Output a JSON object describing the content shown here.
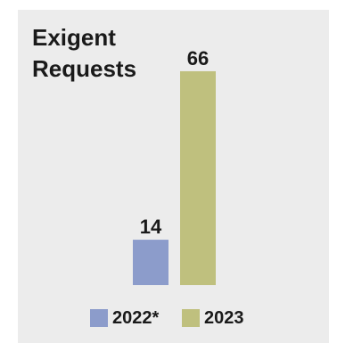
{
  "chart_data": {
    "type": "bar",
    "title_lines": [
      "Exigent",
      "Requests"
    ],
    "categories": [
      "2022*",
      "2023"
    ],
    "values": [
      14,
      66
    ],
    "data_labels": [
      "14",
      "66"
    ],
    "colors": [
      "#8c9ccb",
      "#bfc07e"
    ],
    "ylim": [
      0,
      70
    ],
    "grid": false,
    "legend_position": "bottom",
    "legend": [
      {
        "label": "2022*",
        "color": "#8c9ccb"
      },
      {
        "label": "2023",
        "color": "#bfc07e"
      }
    ]
  }
}
